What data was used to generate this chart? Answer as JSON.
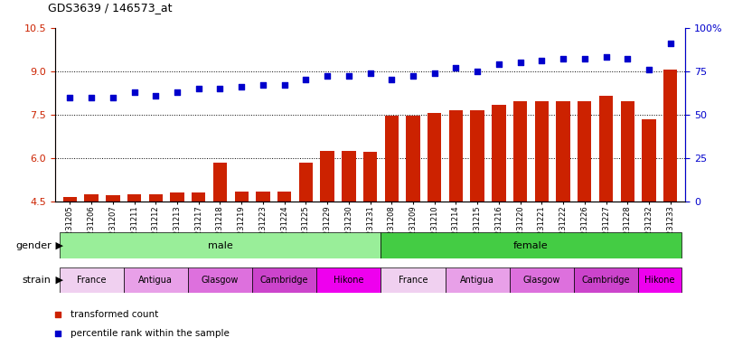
{
  "title": "GDS3639 / 146573_at",
  "samples": [
    "GSM231205",
    "GSM231206",
    "GSM231207",
    "GSM231211",
    "GSM231212",
    "GSM231213",
    "GSM231217",
    "GSM231218",
    "GSM231219",
    "GSM231223",
    "GSM231224",
    "GSM231225",
    "GSM231229",
    "GSM231230",
    "GSM231231",
    "GSM231208",
    "GSM231209",
    "GSM231210",
    "GSM231214",
    "GSM231215",
    "GSM231216",
    "GSM231220",
    "GSM231221",
    "GSM231222",
    "GSM231226",
    "GSM231227",
    "GSM231228",
    "GSM231232",
    "GSM231233"
  ],
  "bar_values": [
    4.65,
    4.75,
    4.7,
    4.75,
    4.75,
    4.8,
    4.8,
    5.85,
    4.85,
    4.85,
    4.85,
    5.85,
    6.25,
    6.25,
    6.2,
    7.45,
    7.45,
    7.55,
    7.65,
    7.65,
    7.85,
    7.95,
    7.95,
    7.95,
    7.95,
    8.15,
    7.95,
    7.35,
    9.05
  ],
  "percentile_values": [
    60,
    60,
    60,
    63,
    61,
    63,
    65,
    65,
    66,
    67,
    67,
    70,
    72,
    72,
    74,
    70,
    72,
    74,
    77,
    75,
    79,
    80,
    81,
    82,
    82,
    83,
    82,
    76,
    91
  ],
  "bar_color": "#cc2200",
  "dot_color": "#0000cc",
  "ylim_left": [
    4.5,
    10.5
  ],
  "ylim_right": [
    0,
    100
  ],
  "yticks_left": [
    4.5,
    6.0,
    7.5,
    9.0,
    10.5
  ],
  "yticks_right": [
    0,
    25,
    50,
    75,
    100
  ],
  "male_color": "#99ee99",
  "female_color": "#44cc44",
  "strain_colors": [
    "#f0d0f0",
    "#e8a0e8",
    "#dd70dd",
    "#cc44cc",
    "#ee00ee"
  ],
  "strain_labels": [
    "France",
    "Antigua",
    "Glasgow",
    "Cambridge",
    "Hikone"
  ],
  "legend_items": [
    {
      "label": "transformed count",
      "color": "#cc2200"
    },
    {
      "label": "percentile rank within the sample",
      "color": "#0000cc"
    }
  ]
}
